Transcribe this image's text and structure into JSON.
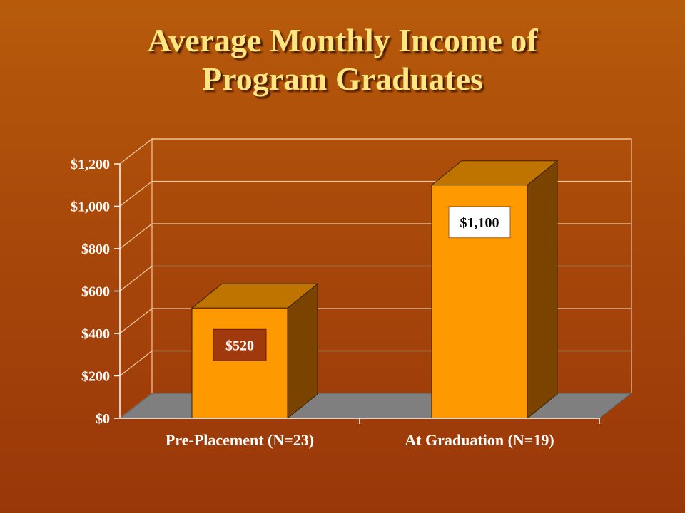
{
  "chart_data": {
    "type": "bar",
    "title": [
      "Average Monthly Income of",
      "Program Graduates"
    ],
    "categories": [
      "Pre-Placement (N=23)",
      "At Graduation (N=19)"
    ],
    "values": [
      520,
      1100
    ],
    "data_labels": [
      "$520",
      "$1,100"
    ],
    "ylim": [
      0,
      1200
    ],
    "yticks": [
      0,
      200,
      400,
      600,
      800,
      1000,
      1200
    ],
    "ytick_labels": [
      "$0",
      "$200",
      "$400",
      "$600",
      "$800",
      "$1,000",
      "$1,200"
    ],
    "grid": true,
    "legend": "none",
    "style": "3d",
    "colors": {
      "bar_front": "#ff9900",
      "bar_top": "#c07400",
      "bar_side": "#7a4400",
      "floor": "#7f7f7f",
      "label_box_1": "#a0390b",
      "label_box_2": "#ffffff",
      "title": "#ffe680"
    }
  }
}
